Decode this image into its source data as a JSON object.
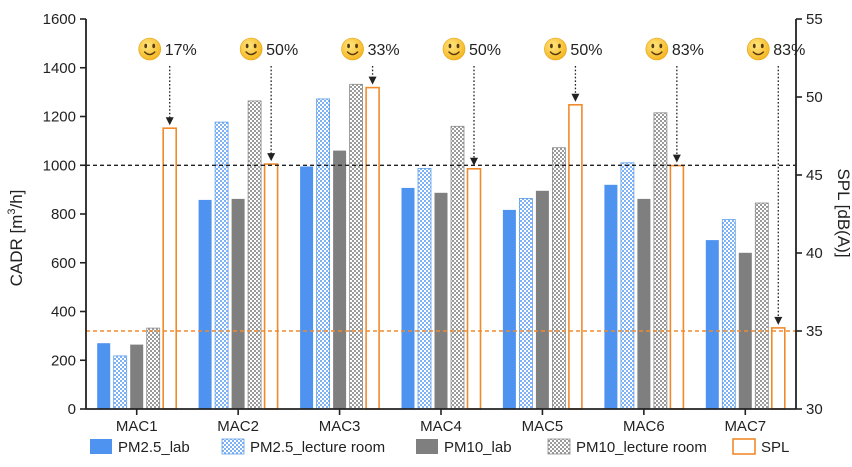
{
  "chart_data": {
    "type": "bar",
    "categories": [
      "MAC1",
      "MAC2",
      "MAC3",
      "MAC4",
      "MAC5",
      "MAC6",
      "MAC7"
    ],
    "ylabel": "CADR [m³/h]",
    "ylabel_parts": {
      "pre": "CADR [m",
      "sup": "3",
      "post": "/h]"
    },
    "y2label": "SPL [dB(A)]",
    "ylim": [
      0,
      1600
    ],
    "y_ticks": [
      0,
      200,
      400,
      600,
      800,
      1000,
      1200,
      1400,
      1600
    ],
    "y2lim": [
      30,
      55
    ],
    "y2_ticks": [
      30,
      35,
      40,
      45,
      50,
      55
    ],
    "series": [
      {
        "name": "PM2.5_lab",
        "axis": "left",
        "style": "solid",
        "color": "#4f93f0",
        "values": [
          270,
          858,
          995,
          907,
          817,
          920,
          693
        ]
      },
      {
        "name": "PM2.5_lecture room",
        "axis": "left",
        "style": "check",
        "color": "#9cc4f7",
        "values": [
          218,
          1177,
          1272,
          987,
          864,
          1010,
          777
        ]
      },
      {
        "name": "PM10_lab",
        "axis": "left",
        "style": "solid",
        "color": "#7f7f7f",
        "values": [
          264,
          862,
          1060,
          887,
          895,
          862,
          641
        ]
      },
      {
        "name": "PM10_lecture room",
        "axis": "left",
        "style": "check",
        "color": "#bdbdbd",
        "values": [
          332,
          1264,
          1332,
          1160,
          1072,
          1215,
          845
        ]
      },
      {
        "name": "SPL",
        "axis": "right",
        "style": "outline",
        "color": "#f08a2b",
        "values": [
          48.0,
          45.7,
          50.6,
          45.4,
          49.5,
          45.6,
          35.2
        ]
      }
    ],
    "reference_lines": [
      {
        "axis": "left",
        "value": 1000,
        "color": "#222222"
      },
      {
        "axis": "right",
        "value": 35,
        "color": "#f08a2b"
      }
    ],
    "annotations": [
      "17%",
      "50%",
      "33%",
      "50%",
      "50%",
      "83%",
      "83%"
    ],
    "annotation_icon": "smiley-face-icon",
    "legend_position": "bottom",
    "grid": false
  }
}
